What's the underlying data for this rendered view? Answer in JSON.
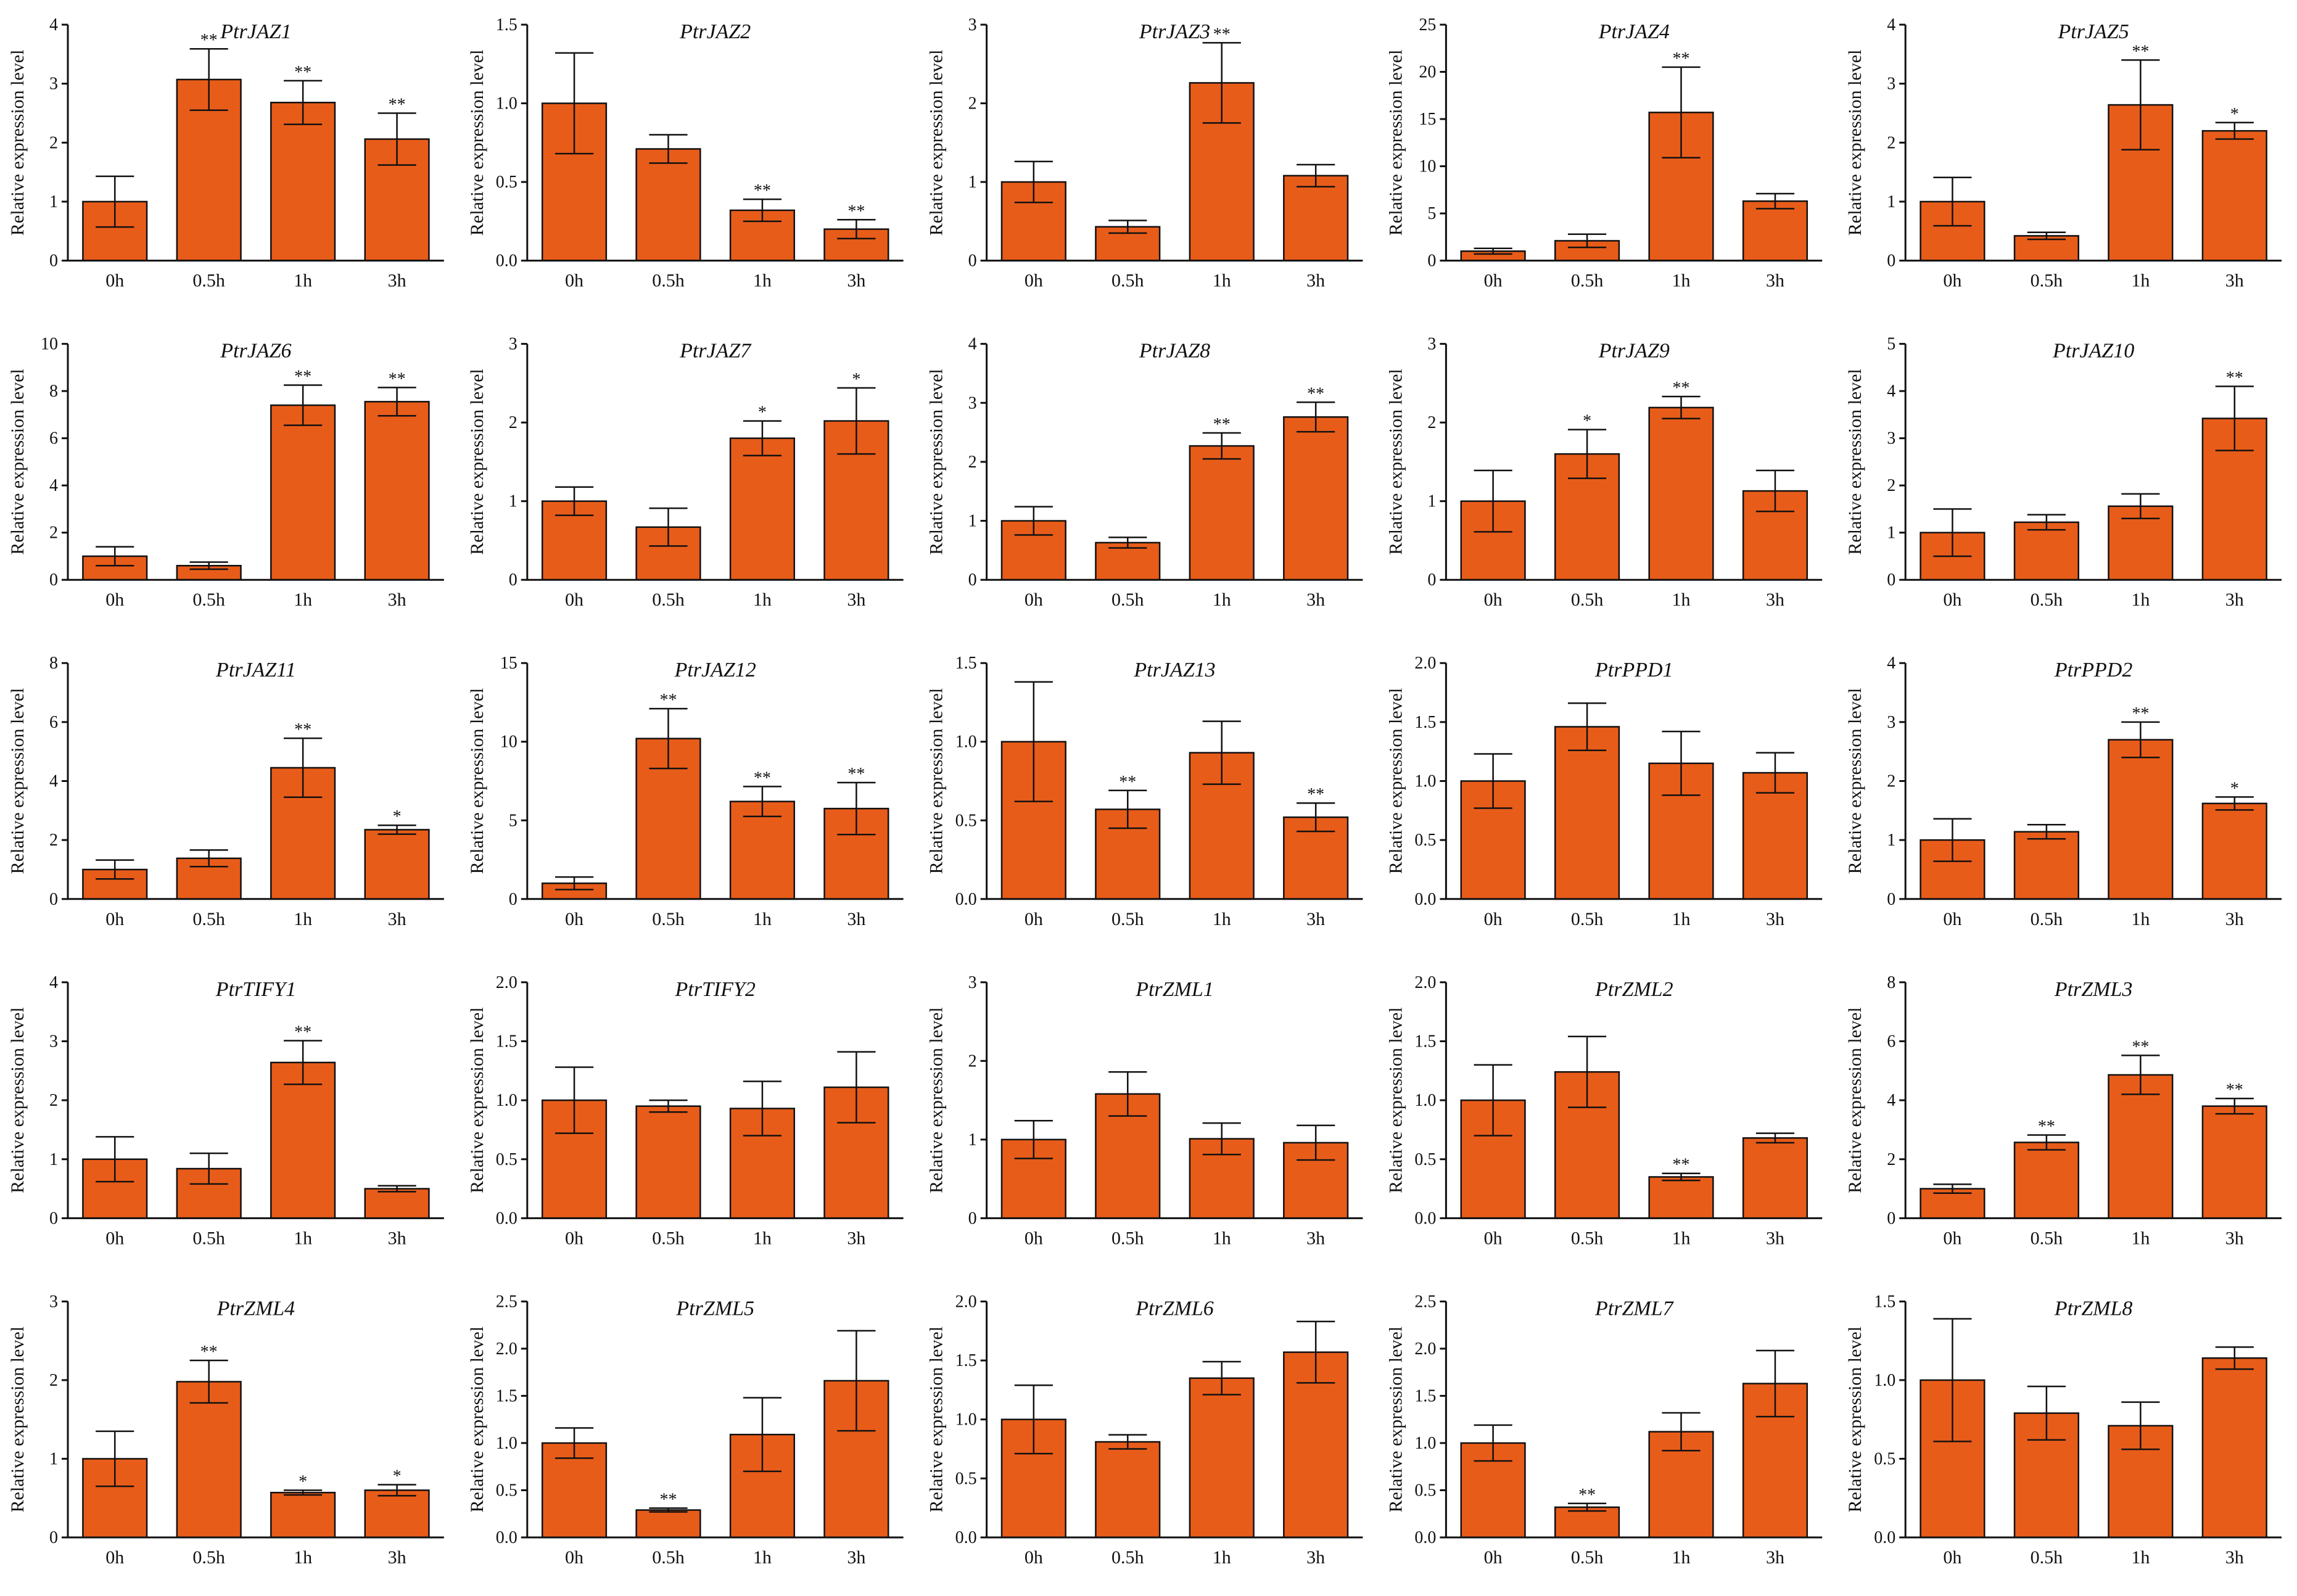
{
  "chart_data": [
    {
      "type": "bar",
      "title": "PtrJAZ1",
      "ylabel": "Relative expression level",
      "categories": [
        "0h",
        "0.5h",
        "1h",
        "3h"
      ],
      "ylim": [
        0,
        4
      ],
      "yticks": [
        "0",
        "1",
        "2",
        "3",
        "4"
      ],
      "values": [
        1.0,
        3.07,
        2.68,
        2.06
      ],
      "errors": [
        0.43,
        0.52,
        0.37,
        0.44
      ],
      "significance": [
        "",
        "**",
        "**",
        "**"
      ]
    },
    {
      "type": "bar",
      "title": "PtrJAZ2",
      "ylabel": "Relative expression level",
      "categories": [
        "0h",
        "0.5h",
        "1h",
        "3h"
      ],
      "ylim": [
        0,
        1.5
      ],
      "yticks": [
        "0.0",
        "0.5",
        "1.0",
        "1.5"
      ],
      "values": [
        1.0,
        0.71,
        0.32,
        0.2
      ],
      "errors": [
        0.32,
        0.09,
        0.07,
        0.06
      ],
      "significance": [
        "",
        "",
        "**",
        "**"
      ]
    },
    {
      "type": "bar",
      "title": "PtrJAZ3",
      "ylabel": "Relative expression level",
      "categories": [
        "0h",
        "0.5h",
        "1h",
        "3h"
      ],
      "ylim": [
        0,
        3
      ],
      "yticks": [
        "0",
        "1",
        "2",
        "3"
      ],
      "values": [
        1.0,
        0.43,
        2.26,
        1.08
      ],
      "errors": [
        0.26,
        0.08,
        0.51,
        0.14
      ],
      "significance": [
        "",
        "",
        "**",
        ""
      ]
    },
    {
      "type": "bar",
      "title": "PtrJAZ4",
      "ylabel": "Relative expression level",
      "categories": [
        "0h",
        "0.5h",
        "1h",
        "3h"
      ],
      "ylim": [
        0,
        25
      ],
      "yticks": [
        "0",
        "5",
        "10",
        "15",
        "20",
        "25"
      ],
      "values": [
        1.0,
        2.1,
        15.7,
        6.3
      ],
      "errors": [
        0.3,
        0.7,
        4.8,
        0.8
      ],
      "significance": [
        "",
        "",
        "**",
        ""
      ]
    },
    {
      "type": "bar",
      "title": "PtrJAZ5",
      "ylabel": "Relative expression level",
      "categories": [
        "0h",
        "0.5h",
        "1h",
        "3h"
      ],
      "ylim": [
        0,
        4
      ],
      "yticks": [
        "0",
        "1",
        "2",
        "3",
        "4"
      ],
      "values": [
        1.0,
        0.42,
        2.64,
        2.2
      ],
      "errors": [
        0.41,
        0.06,
        0.76,
        0.14
      ],
      "significance": [
        "",
        "",
        "**",
        "*"
      ]
    },
    {
      "type": "bar",
      "title": "PtrJAZ6",
      "ylabel": "Relative expression level",
      "categories": [
        "0h",
        "0.5h",
        "1h",
        "3h"
      ],
      "ylim": [
        0,
        10
      ],
      "yticks": [
        "0",
        "2",
        "4",
        "6",
        "8",
        "10"
      ],
      "values": [
        1.0,
        0.6,
        7.4,
        7.55
      ],
      "errors": [
        0.4,
        0.15,
        0.85,
        0.6
      ],
      "significance": [
        "",
        "",
        "**",
        "**"
      ]
    },
    {
      "type": "bar",
      "title": "PtrJAZ7",
      "ylabel": "Relative expression level",
      "categories": [
        "0h",
        "0.5h",
        "1h",
        "3h"
      ],
      "ylim": [
        0,
        3
      ],
      "yticks": [
        "0",
        "1",
        "2",
        "3"
      ],
      "values": [
        1.0,
        0.67,
        1.8,
        2.02
      ],
      "errors": [
        0.18,
        0.24,
        0.22,
        0.42
      ],
      "significance": [
        "",
        "",
        "*",
        "*"
      ]
    },
    {
      "type": "bar",
      "title": "PtrJAZ8",
      "ylabel": "Relative expression level",
      "categories": [
        "0h",
        "0.5h",
        "1h",
        "3h"
      ],
      "ylim": [
        0,
        4
      ],
      "yticks": [
        "0",
        "1",
        "2",
        "3",
        "4"
      ],
      "values": [
        1.0,
        0.63,
        2.27,
        2.76
      ],
      "errors": [
        0.24,
        0.09,
        0.22,
        0.25
      ],
      "significance": [
        "",
        "",
        "**",
        "**"
      ]
    },
    {
      "type": "bar",
      "title": "PtrJAZ9",
      "ylabel": "Relative expression level",
      "categories": [
        "0h",
        "0.5h",
        "1h",
        "3h"
      ],
      "ylim": [
        0,
        3
      ],
      "yticks": [
        "0",
        "1",
        "2",
        "3"
      ],
      "values": [
        1.0,
        1.6,
        2.19,
        1.13
      ],
      "errors": [
        0.39,
        0.31,
        0.14,
        0.26
      ],
      "significance": [
        "",
        "*",
        "**",
        ""
      ]
    },
    {
      "type": "bar",
      "title": "PtrJAZ10",
      "ylabel": "Relative expression level",
      "categories": [
        "0h",
        "0.5h",
        "1h",
        "3h"
      ],
      "ylim": [
        0,
        5
      ],
      "yticks": [
        "0",
        "1",
        "2",
        "3",
        "4",
        "5"
      ],
      "values": [
        1.0,
        1.22,
        1.56,
        3.42
      ],
      "errors": [
        0.5,
        0.16,
        0.26,
        0.68
      ],
      "significance": [
        "",
        "",
        "",
        "**"
      ]
    },
    {
      "type": "bar",
      "title": "PtrJAZ11",
      "ylabel": "Relative expression level",
      "categories": [
        "0h",
        "0.5h",
        "1h",
        "3h"
      ],
      "ylim": [
        0,
        8
      ],
      "yticks": [
        "0",
        "2",
        "4",
        "6",
        "8"
      ],
      "values": [
        1.0,
        1.38,
        4.45,
        2.35
      ],
      "errors": [
        0.32,
        0.28,
        1.0,
        0.15
      ],
      "significance": [
        "",
        "",
        "**",
        "*"
      ]
    },
    {
      "type": "bar",
      "title": "PtrJAZ12",
      "ylabel": "Relative expression level",
      "categories": [
        "0h",
        "0.5h",
        "1h",
        "3h"
      ],
      "ylim": [
        0,
        15
      ],
      "yticks": [
        "0",
        "5",
        "10",
        "15"
      ],
      "values": [
        1.0,
        10.2,
        6.2,
        5.75
      ],
      "errors": [
        0.4,
        1.9,
        0.95,
        1.65
      ],
      "significance": [
        "",
        "**",
        "**",
        "**"
      ]
    },
    {
      "type": "bar",
      "title": "PtrJAZ13",
      "ylabel": "Relative expression level",
      "categories": [
        "0h",
        "0.5h",
        "1h",
        "3h"
      ],
      "ylim": [
        0,
        1.5
      ],
      "yticks": [
        "0.0",
        "0.5",
        "1.0",
        "1.5"
      ],
      "values": [
        1.0,
        0.57,
        0.93,
        0.52
      ],
      "errors": [
        0.38,
        0.12,
        0.2,
        0.09
      ],
      "significance": [
        "",
        "**",
        "",
        "**"
      ]
    },
    {
      "type": "bar",
      "title": "PtrPPD1",
      "ylabel": "Relative expression level",
      "categories": [
        "0h",
        "0.5h",
        "1h",
        "3h"
      ],
      "ylim": [
        0,
        2
      ],
      "yticks": [
        "0.0",
        "0.5",
        "1.0",
        "1.5",
        "2.0"
      ],
      "values": [
        1.0,
        1.46,
        1.15,
        1.07
      ],
      "errors": [
        0.23,
        0.2,
        0.27,
        0.17
      ],
      "significance": [
        "",
        "",
        "",
        ""
      ]
    },
    {
      "type": "bar",
      "title": "PtrPPD2",
      "ylabel": "Relative expression level",
      "categories": [
        "0h",
        "0.5h",
        "1h",
        "3h"
      ],
      "ylim": [
        0,
        4
      ],
      "yticks": [
        "0",
        "1",
        "2",
        "3",
        "4"
      ],
      "values": [
        1.0,
        1.14,
        2.7,
        1.62
      ],
      "errors": [
        0.36,
        0.12,
        0.3,
        0.11
      ],
      "significance": [
        "",
        "",
        "**",
        "*"
      ]
    },
    {
      "type": "bar",
      "title": "PtrTIFY1",
      "ylabel": "Relative expression level",
      "categories": [
        "0h",
        "0.5h",
        "1h",
        "3h"
      ],
      "ylim": [
        0,
        4
      ],
      "yticks": [
        "0",
        "1",
        "2",
        "3",
        "4"
      ],
      "values": [
        1.0,
        0.84,
        2.64,
        0.5
      ],
      "errors": [
        0.38,
        0.26,
        0.37,
        0.05
      ],
      "significance": [
        "",
        "",
        "**",
        ""
      ]
    },
    {
      "type": "bar",
      "title": "PtrTIFY2",
      "ylabel": "Relative expression level",
      "categories": [
        "0h",
        "0.5h",
        "1h",
        "3h"
      ],
      "ylim": [
        0,
        2
      ],
      "yticks": [
        "0.0",
        "0.5",
        "1.0",
        "1.5",
        "2.0"
      ],
      "values": [
        1.0,
        0.95,
        0.93,
        1.11
      ],
      "errors": [
        0.28,
        0.05,
        0.23,
        0.3
      ],
      "significance": [
        "",
        "",
        "",
        ""
      ]
    },
    {
      "type": "bar",
      "title": "PtrZML1",
      "ylabel": "Relative expression level",
      "categories": [
        "0h",
        "0.5h",
        "1h",
        "3h"
      ],
      "ylim": [
        0,
        3
      ],
      "yticks": [
        "0",
        "1",
        "2",
        "3"
      ],
      "values": [
        1.0,
        1.58,
        1.01,
        0.96
      ],
      "errors": [
        0.24,
        0.28,
        0.2,
        0.22
      ],
      "significance": [
        "",
        "",
        "",
        ""
      ]
    },
    {
      "type": "bar",
      "title": "PtrZML2",
      "ylabel": "Relative expression level",
      "categories": [
        "0h",
        "0.5h",
        "1h",
        "3h"
      ],
      "ylim": [
        0,
        2
      ],
      "yticks": [
        "0.0",
        "0.5",
        "1.0",
        "1.5",
        "2.0"
      ],
      "values": [
        1.0,
        1.24,
        0.35,
        0.68
      ],
      "errors": [
        0.3,
        0.3,
        0.03,
        0.04
      ],
      "significance": [
        "",
        "",
        "**",
        ""
      ]
    },
    {
      "type": "bar",
      "title": "PtrZML3",
      "ylabel": "Relative expression level",
      "categories": [
        "0h",
        "0.5h",
        "1h",
        "3h"
      ],
      "ylim": [
        0,
        8
      ],
      "yticks": [
        "0",
        "2",
        "4",
        "6",
        "8"
      ],
      "values": [
        1.0,
        2.57,
        4.86,
        3.8
      ],
      "errors": [
        0.15,
        0.25,
        0.66,
        0.26
      ],
      "significance": [
        "",
        "**",
        "**",
        "**"
      ]
    },
    {
      "type": "bar",
      "title": "PtrZML4",
      "ylabel": "Relative expression level",
      "categories": [
        "0h",
        "0.5h",
        "1h",
        "3h"
      ],
      "ylim": [
        0,
        3
      ],
      "yticks": [
        "0",
        "1",
        "2",
        "3"
      ],
      "values": [
        1.0,
        1.98,
        0.57,
        0.6
      ],
      "errors": [
        0.35,
        0.27,
        0.03,
        0.07
      ],
      "significance": [
        "",
        "**",
        "*",
        "*"
      ]
    },
    {
      "type": "bar",
      "title": "PtrZML5",
      "ylabel": "Relative expression level",
      "categories": [
        "0h",
        "0.5h",
        "1h",
        "3h"
      ],
      "ylim": [
        0,
        2.5
      ],
      "yticks": [
        "0.0",
        "0.5",
        "1.0",
        "1.5",
        "2.0",
        "2.5"
      ],
      "values": [
        1.0,
        0.29,
        1.09,
        1.66
      ],
      "errors": [
        0.16,
        0.02,
        0.39,
        0.53
      ],
      "significance": [
        "",
        "**",
        "",
        ""
      ]
    },
    {
      "type": "bar",
      "title": "PtrZML6",
      "ylabel": "Relative expression level",
      "categories": [
        "0h",
        "0.5h",
        "1h",
        "3h"
      ],
      "ylim": [
        0,
        2
      ],
      "yticks": [
        "0.0",
        "0.5",
        "1.0",
        "1.5",
        "2.0"
      ],
      "values": [
        1.0,
        0.81,
        1.35,
        1.57
      ],
      "errors": [
        0.29,
        0.06,
        0.14,
        0.26
      ],
      "significance": [
        "",
        "",
        "",
        ""
      ]
    },
    {
      "type": "bar",
      "title": "PtrZML7",
      "ylabel": "Relative expression level",
      "categories": [
        "0h",
        "0.5h",
        "1h",
        "3h"
      ],
      "ylim": [
        0,
        2.5
      ],
      "yticks": [
        "0.0",
        "0.5",
        "1.0",
        "1.5",
        "2.0",
        "2.5"
      ],
      "values": [
        1.0,
        0.32,
        1.12,
        1.63
      ],
      "errors": [
        0.19,
        0.04,
        0.2,
        0.35
      ],
      "significance": [
        "",
        "**",
        "",
        ""
      ]
    },
    {
      "type": "bar",
      "title": "PtrZML8",
      "ylabel": "Relative expression level",
      "categories": [
        "0h",
        "0.5h",
        "1h",
        "3h"
      ],
      "ylim": [
        0,
        1.5
      ],
      "yticks": [
        "0.0",
        "0.5",
        "1.0",
        "1.5"
      ],
      "values": [
        1.0,
        0.79,
        0.71,
        1.14
      ],
      "errors": [
        0.39,
        0.17,
        0.15,
        0.07
      ],
      "significance": [
        "",
        "",
        "",
        ""
      ]
    }
  ],
  "colors": {
    "bar_fill": "#E85C1A",
    "axis": "#111111"
  }
}
